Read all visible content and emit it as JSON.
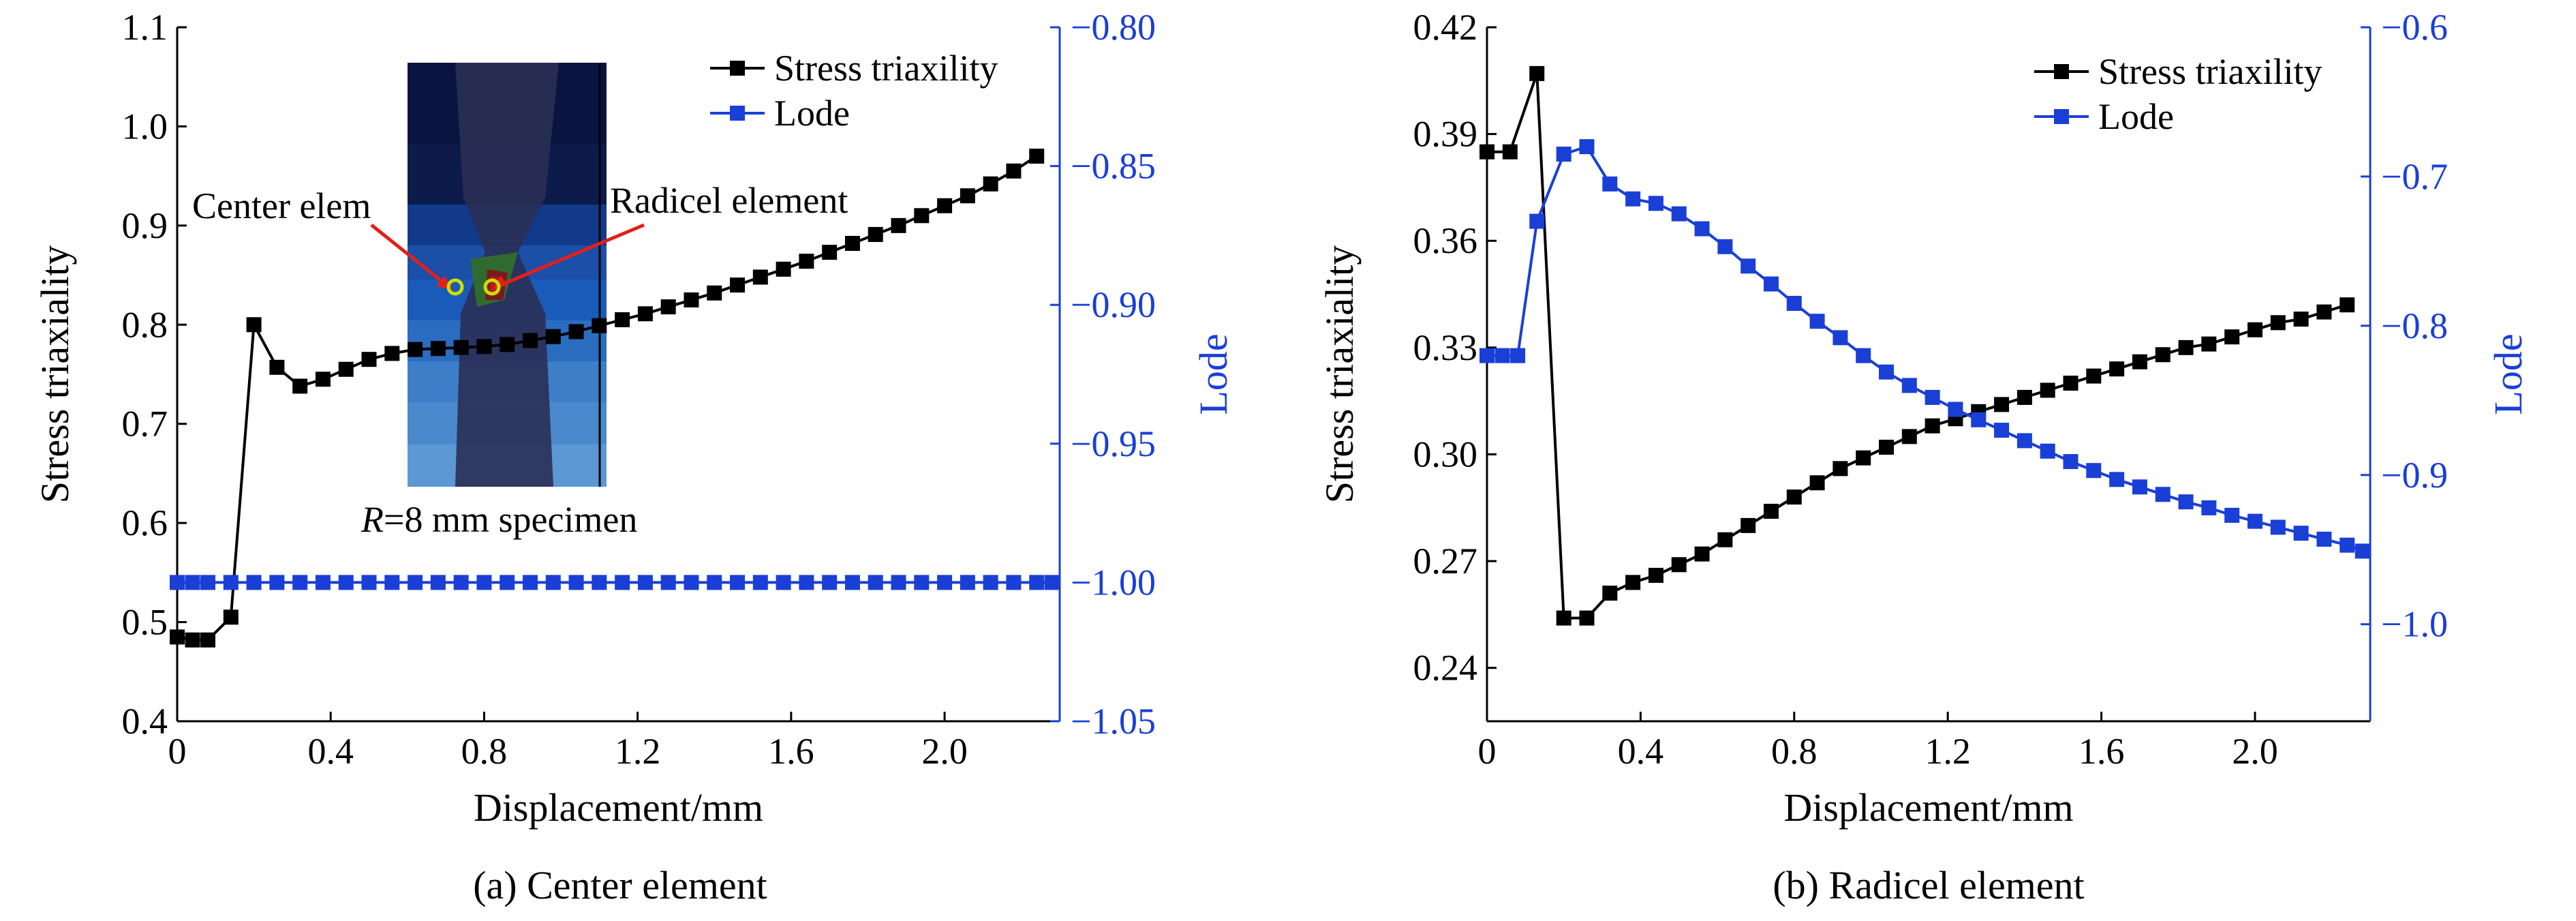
{
  "colors": {
    "triaxiality": "#000000",
    "lode": "#1a3fd6",
    "annotation_arrow": "#e0201b"
  },
  "chart_data": [
    {
      "type": "line",
      "caption": "(a) Center element",
      "xlabel": "Displacement/mm",
      "ylabel": "Stress triaxiality",
      "y2label": "Lode",
      "xlim": [
        0,
        2.3
      ],
      "ylim": [
        0.4,
        1.1
      ],
      "y2lim": [
        -1.05,
        -0.8
      ],
      "xticks": [
        "0",
        "0.4",
        "0.8",
        "1.2",
        "1.6",
        "2.0"
      ],
      "xtick_values": [
        0,
        0.4,
        0.8,
        1.2,
        1.6,
        2.0
      ],
      "yticks": [
        "0.4",
        "0.5",
        "0.6",
        "0.7",
        "0.8",
        "0.9",
        "1.0",
        "1.1"
      ],
      "ytick_values": [
        0.4,
        0.5,
        0.6,
        0.7,
        0.8,
        0.9,
        1.0,
        1.1
      ],
      "y2ticks": [
        "−1.05",
        "−1.00",
        "−0.95",
        "−0.90",
        "−0.85",
        "−0.80"
      ],
      "y2tick_values": [
        -1.05,
        -1.0,
        -0.95,
        -0.9,
        -0.85,
        -0.8
      ],
      "legend": [
        "Stress triaxility",
        "Lode"
      ],
      "legend_position": "top-right",
      "annotations": {
        "left": "Center elem",
        "right": "Radicel element",
        "specimen_prefix": "R",
        "specimen_suffix": "=8 mm specimen"
      },
      "series": [
        {
          "name": "Stress triaxility",
          "axis": "left",
          "x": [
            0,
            0.04,
            0.08,
            0.14,
            0.2,
            0.26,
            0.32,
            0.38,
            0.44,
            0.5,
            0.56,
            0.62,
            0.68,
            0.74,
            0.8,
            0.86,
            0.92,
            0.98,
            1.04,
            1.1,
            1.16,
            1.22,
            1.28,
            1.34,
            1.4,
            1.46,
            1.52,
            1.58,
            1.64,
            1.7,
            1.76,
            1.82,
            1.88,
            1.94,
            2.0,
            2.06,
            2.12,
            2.18,
            2.24
          ],
          "y": [
            0.485,
            0.482,
            0.482,
            0.505,
            0.8,
            0.757,
            0.738,
            0.745,
            0.755,
            0.765,
            0.771,
            0.775,
            0.776,
            0.777,
            0.778,
            0.78,
            0.784,
            0.788,
            0.793,
            0.799,
            0.805,
            0.811,
            0.818,
            0.825,
            0.832,
            0.84,
            0.848,
            0.856,
            0.864,
            0.873,
            0.882,
            0.891,
            0.9,
            0.91,
            0.92,
            0.93,
            0.942,
            0.955,
            0.97
          ]
        },
        {
          "name": "Lode",
          "axis": "right",
          "x": [
            0,
            0.04,
            0.08,
            0.14,
            0.2,
            0.26,
            0.32,
            0.38,
            0.44,
            0.5,
            0.56,
            0.62,
            0.68,
            0.74,
            0.8,
            0.86,
            0.92,
            0.98,
            1.04,
            1.1,
            1.16,
            1.22,
            1.28,
            1.34,
            1.4,
            1.46,
            1.52,
            1.58,
            1.64,
            1.7,
            1.76,
            1.82,
            1.88,
            1.94,
            2.0,
            2.06,
            2.12,
            2.18,
            2.24,
            2.28
          ],
          "y": [
            -1,
            -1,
            -1,
            -1,
            -1,
            -1,
            -1,
            -1,
            -1,
            -1,
            -1,
            -1,
            -1,
            -1,
            -1,
            -1,
            -1,
            -1,
            -1,
            -1,
            -1,
            -1,
            -1,
            -1,
            -1,
            -1,
            -1,
            -1,
            -1,
            -1,
            -1,
            -1,
            -1,
            -1,
            -1,
            -1,
            -1,
            -1,
            -1,
            -1
          ]
        }
      ]
    },
    {
      "type": "line",
      "caption": "(b) Radicel element",
      "xlabel": "Displacement/mm",
      "ylabel": "Stress triaxiality",
      "y2label": "Lode",
      "xlim": [
        0,
        2.3
      ],
      "ylim": [
        0.225,
        0.42
      ],
      "y2lim": [
        -1.065,
        -0.6
      ],
      "xticks": [
        "0",
        "0.4",
        "0.8",
        "1.2",
        "1.6",
        "2.0"
      ],
      "xtick_values": [
        0,
        0.4,
        0.8,
        1.2,
        1.6,
        2.0
      ],
      "yticks": [
        "0.24",
        "0.27",
        "0.30",
        "0.33",
        "0.36",
        "0.39",
        "0.42"
      ],
      "ytick_values": [
        0.24,
        0.27,
        0.3,
        0.33,
        0.36,
        0.39,
        0.42
      ],
      "y2ticks": [
        "−1.0",
        "−0.9",
        "−0.8",
        "−0.7",
        "−0.6"
      ],
      "y2tick_values": [
        -1.0,
        -0.9,
        -0.8,
        -0.7,
        -0.6
      ],
      "legend": [
        "Stress triaxility",
        "Lode"
      ],
      "legend_position": "top-right",
      "series": [
        {
          "name": "Stress triaxility",
          "axis": "left",
          "x": [
            0,
            0.06,
            0.13,
            0.2,
            0.26,
            0.32,
            0.38,
            0.44,
            0.5,
            0.56,
            0.62,
            0.68,
            0.74,
            0.8,
            0.86,
            0.92,
            0.98,
            1.04,
            1.1,
            1.16,
            1.22,
            1.28,
            1.34,
            1.4,
            1.46,
            1.52,
            1.58,
            1.64,
            1.7,
            1.76,
            1.82,
            1.88,
            1.94,
            2.0,
            2.06,
            2.12,
            2.18,
            2.24
          ],
          "y": [
            0.385,
            0.385,
            0.407,
            0.254,
            0.254,
            0.261,
            0.264,
            0.266,
            0.269,
            0.272,
            0.276,
            0.28,
            0.284,
            0.288,
            0.292,
            0.296,
            0.299,
            0.302,
            0.305,
            0.308,
            0.31,
            0.312,
            0.314,
            0.316,
            0.318,
            0.32,
            0.322,
            0.324,
            0.326,
            0.328,
            0.33,
            0.331,
            0.333,
            0.335,
            0.337,
            0.338,
            0.34,
            0.342
          ]
        },
        {
          "name": "Lode",
          "axis": "right",
          "x": [
            0,
            0.04,
            0.08,
            0.13,
            0.2,
            0.26,
            0.32,
            0.38,
            0.44,
            0.5,
            0.56,
            0.62,
            0.68,
            0.74,
            0.8,
            0.86,
            0.92,
            0.98,
            1.04,
            1.1,
            1.16,
            1.22,
            1.28,
            1.34,
            1.4,
            1.46,
            1.52,
            1.58,
            1.64,
            1.7,
            1.76,
            1.82,
            1.88,
            1.94,
            2.0,
            2.06,
            2.12,
            2.18,
            2.24,
            2.28
          ],
          "y": [
            -0.82,
            -0.82,
            -0.82,
            -0.73,
            -0.685,
            -0.68,
            -0.705,
            -0.715,
            -0.718,
            -0.725,
            -0.735,
            -0.747,
            -0.76,
            -0.772,
            -0.785,
            -0.797,
            -0.808,
            -0.82,
            -0.831,
            -0.84,
            -0.848,
            -0.856,
            -0.863,
            -0.87,
            -0.877,
            -0.884,
            -0.891,
            -0.897,
            -0.903,
            -0.908,
            -0.913,
            -0.918,
            -0.922,
            -0.927,
            -0.931,
            -0.935,
            -0.939,
            -0.943,
            -0.947,
            -0.951
          ]
        }
      ]
    }
  ]
}
